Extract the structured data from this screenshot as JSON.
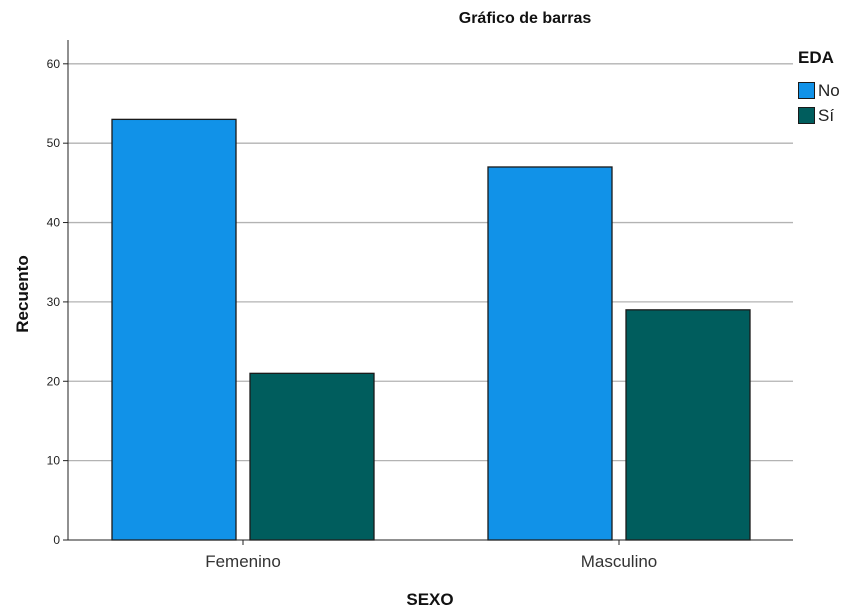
{
  "chart_data": {
    "type": "bar",
    "title": "Gráfico de barras",
    "xlabel": "SEXO",
    "ylabel": "Recuento",
    "categories": [
      "Femenino",
      "Masculino"
    ],
    "series": [
      {
        "name": "No",
        "values": [
          53,
          47
        ],
        "color": "#1192e8"
      },
      {
        "name": "Sí",
        "values": [
          21,
          29
        ],
        "color": "#005d5d"
      }
    ],
    "yticks": [
      "0",
      "10",
      "20",
      "30",
      "40",
      "50",
      "60"
    ],
    "ylim": [
      0,
      63
    ],
    "grid": true,
    "legend": {
      "title": "EDA",
      "position": "top-right"
    }
  }
}
